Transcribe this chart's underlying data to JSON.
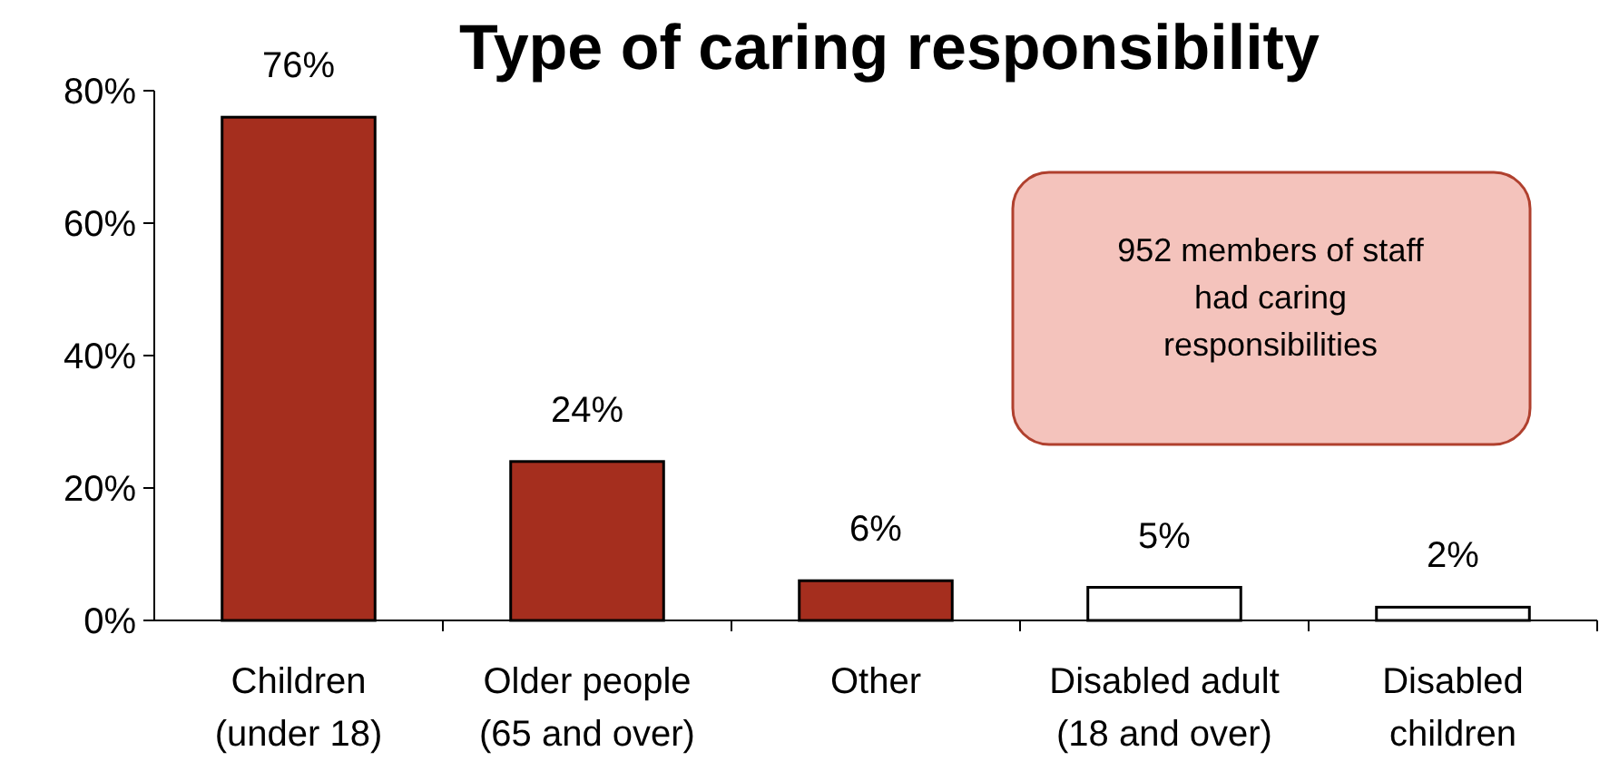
{
  "chart_data": {
    "type": "bar",
    "title": "Type of caring responsibility",
    "categories": [
      "Children (under 18)",
      "Older people (65 and over)",
      "Other",
      "Disabled adult (18 and over)",
      "Disabled children"
    ],
    "values": [
      76,
      24,
      6,
      5,
      2
    ],
    "colors": [
      "#a52e1e",
      "#a52e1e",
      "#a52e1e",
      "#ffffff",
      "#ffffff"
    ],
    "value_labels": [
      "76%",
      "24%",
      "6%",
      "5%",
      "2%"
    ],
    "ylim": [
      0,
      80
    ],
    "yticks": [
      {
        "value": 0,
        "label": "0%"
      },
      {
        "value": 20,
        "label": "20%"
      },
      {
        "value": 40,
        "label": "40%"
      },
      {
        "value": 60,
        "label": "60%"
      },
      {
        "value": 80,
        "label": "80%"
      }
    ],
    "annotations": [
      "952 members of staff had caring responsibilities"
    ],
    "grid": false
  }
}
